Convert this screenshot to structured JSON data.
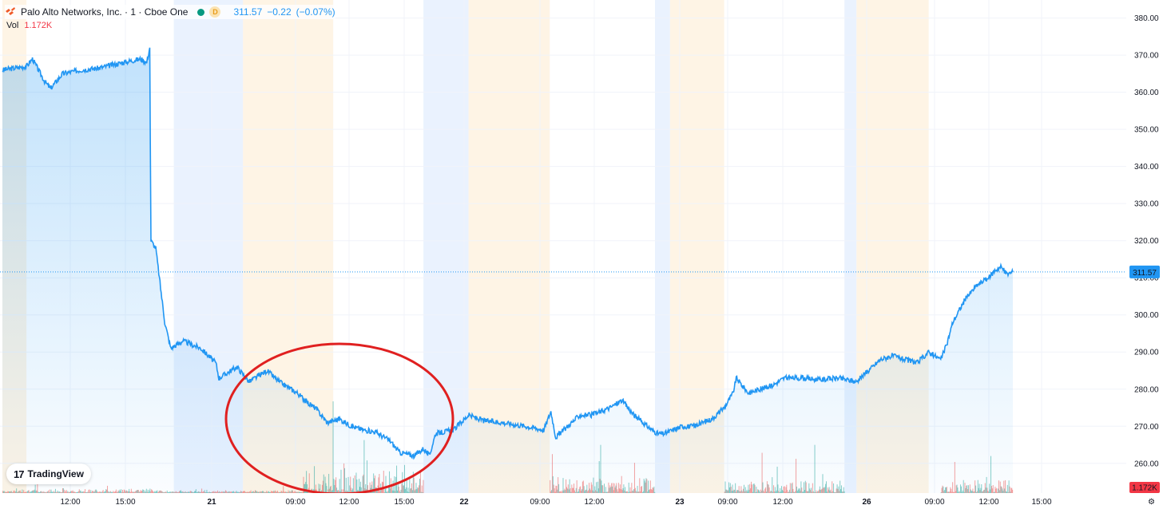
{
  "header": {
    "title": "Palo Alto Networks, Inc. · 1 · Cboe One",
    "market_badge": "D",
    "last_price": "311.57",
    "change": "−0.22",
    "change_pct": "(−0.07%)"
  },
  "volume_legend": {
    "label": "Vol",
    "value": "1.172K"
  },
  "watermark": {
    "text": "TradingView"
  },
  "colors": {
    "line": "#2196f3",
    "premarket_band": "#e3eefd",
    "afterhours_band": "#fdf0dc",
    "vol_up": "#26a69a",
    "vol_down": "#ef5350",
    "last_price_badge": "#2196f3",
    "vol_badge": "#f23645",
    "annotation": "#e02020"
  },
  "chart_data": {
    "type": "line",
    "yaxis": {
      "range": [
        252,
        384
      ],
      "ticks": [
        "380.00",
        "370.00",
        "360.00",
        "350.00",
        "340.00",
        "330.00",
        "320.00",
        "310.00",
        "300.00",
        "290.00",
        "280.00",
        "270.00",
        "260.00"
      ]
    },
    "xaxis": {
      "ticks": [
        "12:00",
        "15:00",
        "21",
        "09:00",
        "12:00",
        "15:00",
        "22",
        "09:00",
        "12:00",
        "23",
        "09:00",
        "12:00",
        "26",
        "09:00",
        "12:00",
        "15:00"
      ]
    },
    "last_price": "311.57",
    "volume_value": "1.172K",
    "sessions": [
      {
        "kind": "afterhours",
        "start": 0,
        "end": 0.4
      },
      {
        "kind": "premarket",
        "start": 2.85,
        "end": 4.0
      },
      {
        "kind": "afterhours",
        "start": 4.0,
        "end": 5.5
      },
      {
        "kind": "premarket",
        "start": 7.0,
        "end": 7.75
      },
      {
        "kind": "afterhours",
        "start": 7.75,
        "end": 9.1
      },
      {
        "kind": "premarket",
        "start": 10.85,
        "end": 11.1
      },
      {
        "kind": "afterhours",
        "start": 11.1,
        "end": 12.0
      },
      {
        "kind": "premarket",
        "start": 14.0,
        "end": 14.2
      },
      {
        "kind": "afterhours",
        "start": 14.2,
        "end": 15.4
      }
    ],
    "series": [
      {
        "values": [
          [
            0,
            366
          ],
          [
            0.4,
            367
          ],
          [
            0.5,
            369
          ],
          [
            0.7,
            363
          ],
          [
            0.8,
            361
          ],
          [
            1.0,
            365
          ],
          [
            1.3,
            366
          ],
          [
            1.6,
            366.5
          ],
          [
            2.0,
            368
          ],
          [
            2.3,
            369
          ],
          [
            2.4,
            368
          ],
          [
            2.45,
            372
          ],
          [
            2.47,
            320
          ],
          [
            2.55,
            318
          ],
          [
            2.7,
            298
          ],
          [
            2.8,
            291
          ],
          [
            3.0,
            293
          ],
          [
            3.3,
            291
          ],
          [
            3.55,
            287
          ],
          [
            3.6,
            283
          ],
          [
            3.9,
            286
          ],
          [
            4.1,
            282
          ],
          [
            4.4,
            285
          ],
          [
            4.6,
            282
          ],
          [
            4.9,
            279
          ],
          [
            5.1,
            276
          ],
          [
            5.2,
            275
          ],
          [
            5.4,
            271
          ],
          [
            5.6,
            272
          ],
          [
            5.8,
            270
          ],
          [
            6.0,
            269
          ],
          [
            6.2,
            268.5
          ],
          [
            6.45,
            266
          ],
          [
            6.6,
            263
          ],
          [
            6.85,
            262
          ],
          [
            7.0,
            264
          ],
          [
            7.1,
            262
          ],
          [
            7.2,
            268
          ],
          [
            7.5,
            269
          ],
          [
            7.75,
            273
          ],
          [
            8.0,
            271.5
          ],
          [
            8.3,
            271
          ],
          [
            8.7,
            270
          ],
          [
            9.0,
            269
          ],
          [
            9.12,
            274
          ],
          [
            9.2,
            267
          ],
          [
            9.4,
            270
          ],
          [
            9.6,
            273
          ],
          [
            9.8,
            273
          ],
          [
            10.1,
            275
          ],
          [
            10.3,
            277
          ],
          [
            10.5,
            273
          ],
          [
            10.8,
            269
          ],
          [
            10.9,
            268
          ],
          [
            11.0,
            268
          ],
          [
            11.3,
            270
          ],
          [
            11.5,
            270
          ],
          [
            11.8,
            272
          ],
          [
            12.0,
            275
          ],
          [
            12.15,
            279
          ],
          [
            12.2,
            283
          ],
          [
            12.4,
            279
          ],
          [
            12.6,
            280
          ],
          [
            12.8,
            281
          ],
          [
            13.0,
            283
          ],
          [
            13.3,
            283
          ],
          [
            13.6,
            282.5
          ],
          [
            13.9,
            283
          ],
          [
            14.2,
            282
          ],
          [
            14.4,
            285
          ],
          [
            14.6,
            288
          ],
          [
            14.8,
            289
          ],
          [
            15.0,
            288
          ],
          [
            15.2,
            287
          ],
          [
            15.4,
            290
          ],
          [
            15.6,
            288
          ],
          [
            15.7,
            292
          ],
          [
            15.8,
            298
          ],
          [
            16.0,
            304
          ],
          [
            16.2,
            308
          ],
          [
            16.4,
            310
          ],
          [
            16.5,
            312
          ],
          [
            16.6,
            313
          ],
          [
            16.7,
            311
          ],
          [
            16.8,
            311.57
          ]
        ]
      }
    ],
    "annotations": [
      {
        "kind": "ellipse",
        "label": ""
      }
    ]
  }
}
